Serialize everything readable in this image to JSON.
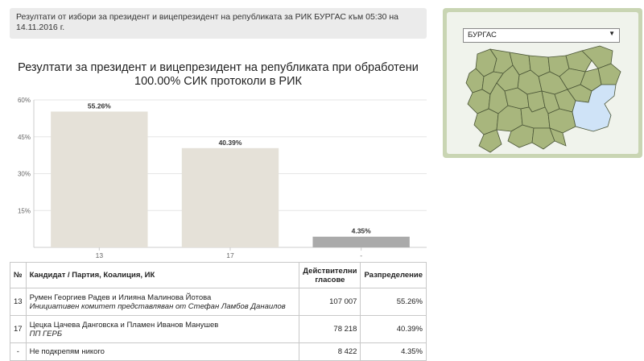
{
  "info_text": "Резултати от избори за президент и вицепрезидент на републиката за РИК БУРГАС към 05:30 на 14.11.2016 г.",
  "chart_title": "Резултати за президент и вицепрезидент на републиката при обработени 100.00% СИК протоколи в РИК",
  "chart_data": {
    "type": "bar",
    "categories": [
      "13",
      "17",
      "-"
    ],
    "values": [
      55.26,
      40.39,
      4.35
    ],
    "value_labels": [
      "55.26%",
      "40.39%",
      "4.35%"
    ],
    "yticks": [
      "15%",
      "30%",
      "45%",
      "60%"
    ],
    "ylim": [
      0,
      60
    ],
    "bar_colors": [
      "#e5e1d8",
      "#e5e1d8",
      "#aaaaaa"
    ],
    "grid": true
  },
  "table": {
    "headers": {
      "no": "№",
      "candidate": "Кандидат / Партия, Коалиция, ИК",
      "votes": "Действителни гласове",
      "distribution": "Разпределение"
    },
    "rows": [
      {
        "no": "13",
        "name": "Румен Георгиев Радев и Илияна Малинова Йотова",
        "party": "Инициативен комитет представляван от Стефан Ламбов Данаилов",
        "votes": "107 007",
        "dist": "55.26%"
      },
      {
        "no": "17",
        "name": "Цецка Цачева Данговска и Пламен Иванов Манушев",
        "party": "ПП ГЕРБ",
        "votes": "78 218",
        "dist": "40.39%"
      },
      {
        "no": "-",
        "name": "Не подкрепям никого",
        "party": "",
        "votes": "8 422",
        "dist": "4.35%"
      }
    ]
  },
  "map": {
    "selected_region": "БУРГАС",
    "colors": {
      "regions": "#a8b67d",
      "selected": "#cfe3f7",
      "borders": "#4a5536"
    }
  }
}
